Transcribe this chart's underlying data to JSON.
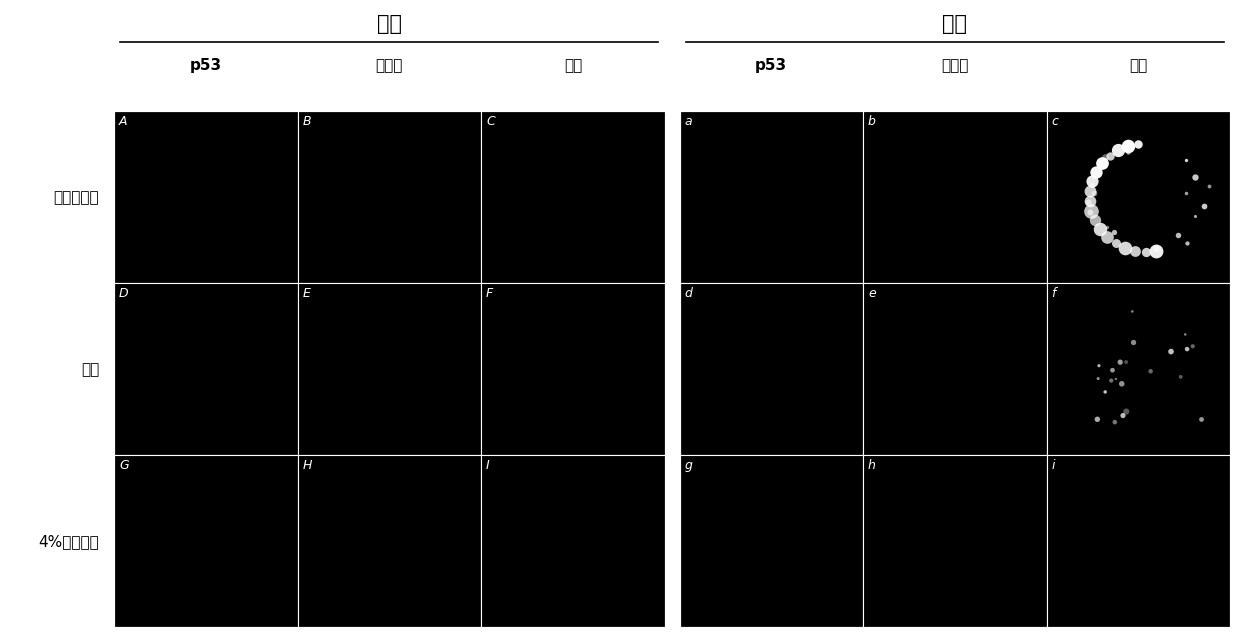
{
  "title_normoxia": "常氧",
  "title_hypoxia": "缺氧",
  "col_headers": [
    "p53",
    "线粒体",
    "串合"
  ],
  "row_labels": [
    "甲醇：丙酮",
    "甲醇",
    "4%多聚甲醇"
  ],
  "cell_labels_upper": [
    [
      "A",
      "B",
      "C",
      "a",
      "b",
      "c"
    ],
    [
      "D",
      "E",
      "F",
      "d",
      "e",
      "f"
    ],
    [
      "G",
      "H",
      "I",
      "g",
      "h",
      "i"
    ]
  ],
  "bg_color": "#000000",
  "frame_color": "#ffffff",
  "fig_bg": "#ffffff",
  "text_color_dark": "#000000",
  "text_color_light": "#ffffff",
  "nrows": 3,
  "ncols": 6
}
